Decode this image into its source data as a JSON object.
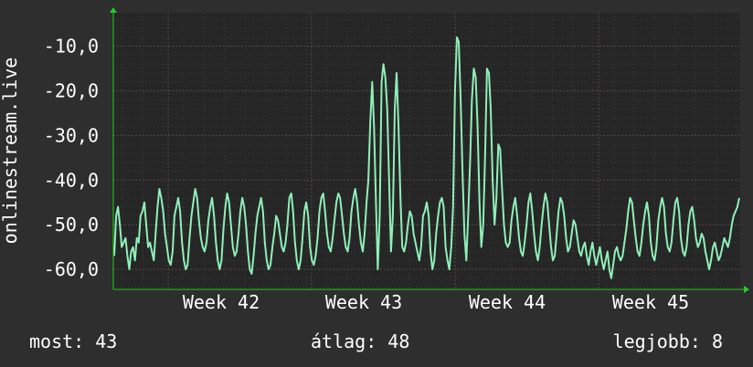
{
  "chart_data": {
    "type": "line",
    "ylabel": "onlinestream.live",
    "y_ticks": [
      -10,
      -20,
      -30,
      -40,
      -50,
      -60
    ],
    "y_tick_labels": [
      "-10,0",
      "-20,0",
      "-30,0",
      "-40,0",
      "-50,0",
      "-60,0"
    ],
    "ylim": [
      -64.5,
      -2.5
    ],
    "x_tick_labels": [
      "Week 42",
      "Week 43",
      "Week 44",
      "Week 45"
    ],
    "grid": true,
    "series": [
      {
        "color": "#8ff0b8",
        "values": [
          -57,
          -48,
          -46,
          -50,
          -55,
          -54,
          -53,
          -57,
          -60,
          -56,
          -55,
          -58,
          -53,
          -54,
          -48,
          -47,
          -45,
          -50,
          -55,
          -54,
          -56,
          -58,
          -52,
          -46,
          -42,
          -44,
          -47,
          -52,
          -55,
          -58,
          -59,
          -56,
          -48,
          -46,
          -44,
          -47,
          -54,
          -58,
          -60,
          -59,
          -53,
          -48,
          -45,
          -42,
          -44,
          -49,
          -53,
          -55,
          -56,
          -54,
          -49,
          -46,
          -44,
          -48,
          -54,
          -58,
          -60,
          -58,
          -51,
          -46,
          -43,
          -45,
          -50,
          -55,
          -57,
          -56,
          -52,
          -47,
          -44,
          -46,
          -50,
          -56,
          -60,
          -61,
          -57,
          -52,
          -48,
          -46,
          -44,
          -47,
          -54,
          -58,
          -60,
          -59,
          -55,
          -52,
          -48,
          -49,
          -52,
          -55,
          -56,
          -54,
          -50,
          -44,
          -43,
          -47,
          -54,
          -58,
          -60,
          -58,
          -53,
          -47,
          -45,
          -48,
          -55,
          -58,
          -59,
          -57,
          -53,
          -47,
          -44,
          -43,
          -47,
          -52,
          -55,
          -56,
          -53,
          -49,
          -45,
          -43,
          -44,
          -48,
          -52,
          -55,
          -56,
          -53,
          -47,
          -44,
          -42,
          -45,
          -50,
          -54,
          -56,
          -52,
          -45,
          -40,
          -27,
          -18,
          -28,
          -45,
          -60,
          -48,
          -18,
          -14,
          -17,
          -24,
          -40,
          -56,
          -48,
          -24,
          -16,
          -28,
          -44,
          -55,
          -56,
          -54,
          -50,
          -47,
          -48,
          -52,
          -54,
          -56,
          -58,
          -55,
          -48,
          -47,
          -45,
          -48,
          -56,
          -60,
          -58,
          -52,
          -48,
          -45,
          -44,
          -46,
          -55,
          -58,
          -60,
          -55,
          -46,
          -20,
          -8,
          -9,
          -22,
          -38,
          -52,
          -58,
          -48,
          -36,
          -22,
          -15,
          -17,
          -28,
          -45,
          -55,
          -50,
          -34,
          -15,
          -16,
          -24,
          -40,
          -50,
          -44,
          -32,
          -33,
          -42,
          -50,
          -54,
          -55,
          -54,
          -49,
          -46,
          -44,
          -48,
          -53,
          -56,
          -57,
          -54,
          -50,
          -45,
          -43,
          -47,
          -52,
          -56,
          -58,
          -55,
          -50,
          -46,
          -43,
          -45,
          -50,
          -55,
          -58,
          -57,
          -52,
          -47,
          -44,
          -45,
          -48,
          -53,
          -56,
          -55,
          -52,
          -49,
          -50,
          -53,
          -56,
          -57,
          -55,
          -54,
          -57,
          -59,
          -56,
          -54,
          -57,
          -59,
          -57,
          -55,
          -58,
          -60,
          -58,
          -56,
          -60,
          -62,
          -59,
          -56,
          -55,
          -57,
          -58,
          -57,
          -54,
          -51,
          -47,
          -44,
          -45,
          -49,
          -53,
          -56,
          -57,
          -54,
          -50,
          -47,
          -45,
          -48,
          -54,
          -57,
          -58,
          -55,
          -49,
          -46,
          -44,
          -46,
          -52,
          -55,
          -56,
          -54,
          -49,
          -45,
          -44,
          -47,
          -53,
          -56,
          -57,
          -55,
          -50,
          -47,
          -46,
          -49,
          -53,
          -55,
          -54,
          -52,
          -53,
          -56,
          -58,
          -60,
          -58,
          -55,
          -54,
          -56,
          -58,
          -57,
          -55,
          -53,
          -54,
          -55,
          -53,
          -50,
          -48,
          -47,
          -46,
          -44
        ]
      }
    ]
  },
  "footer": {
    "now": "most: 43",
    "avg": "átlag: 48",
    "best": "legjobb: 8"
  },
  "colors": {
    "background": "#2e2e2e",
    "plot_background": "#262626",
    "grid_minor": "#3e3e3e",
    "grid_major": "#584848",
    "line": "#8ff0b8",
    "axis_arrow": "#22cc22",
    "text": "#ffffff"
  }
}
